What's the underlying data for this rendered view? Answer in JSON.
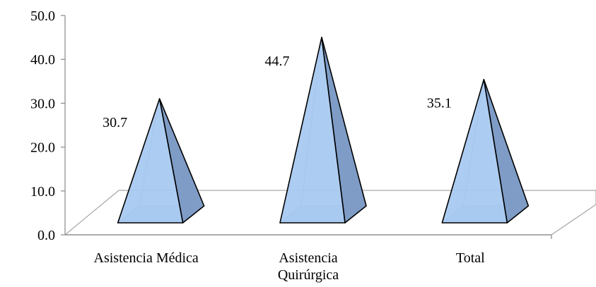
{
  "chart_data": {
    "type": "bar",
    "shape": "pyramid-3d",
    "categories": [
      "Asistencia Médica",
      "Asistencia Quirúrgica",
      "Total"
    ],
    "category_lines": [
      [
        "Asistencia Médica"
      ],
      [
        "Asistencia",
        "Quirúrgica"
      ],
      [
        "Total"
      ]
    ],
    "values": [
      30.7,
      44.7,
      35.1
    ],
    "ylim": [
      0,
      50
    ],
    "yticks": [
      "0.0",
      "10.0",
      "20.0",
      "30.0",
      "40.0",
      "50.0"
    ],
    "grid": false,
    "legend": "none",
    "colors": {
      "pyramid_light": "#a6c8f0",
      "pyramid_dark": "#7e9cc6",
      "pyramid_base": "#92b4e0",
      "outline": "#000000",
      "floor": "#a6a6a6",
      "axis": "#888888"
    }
  }
}
